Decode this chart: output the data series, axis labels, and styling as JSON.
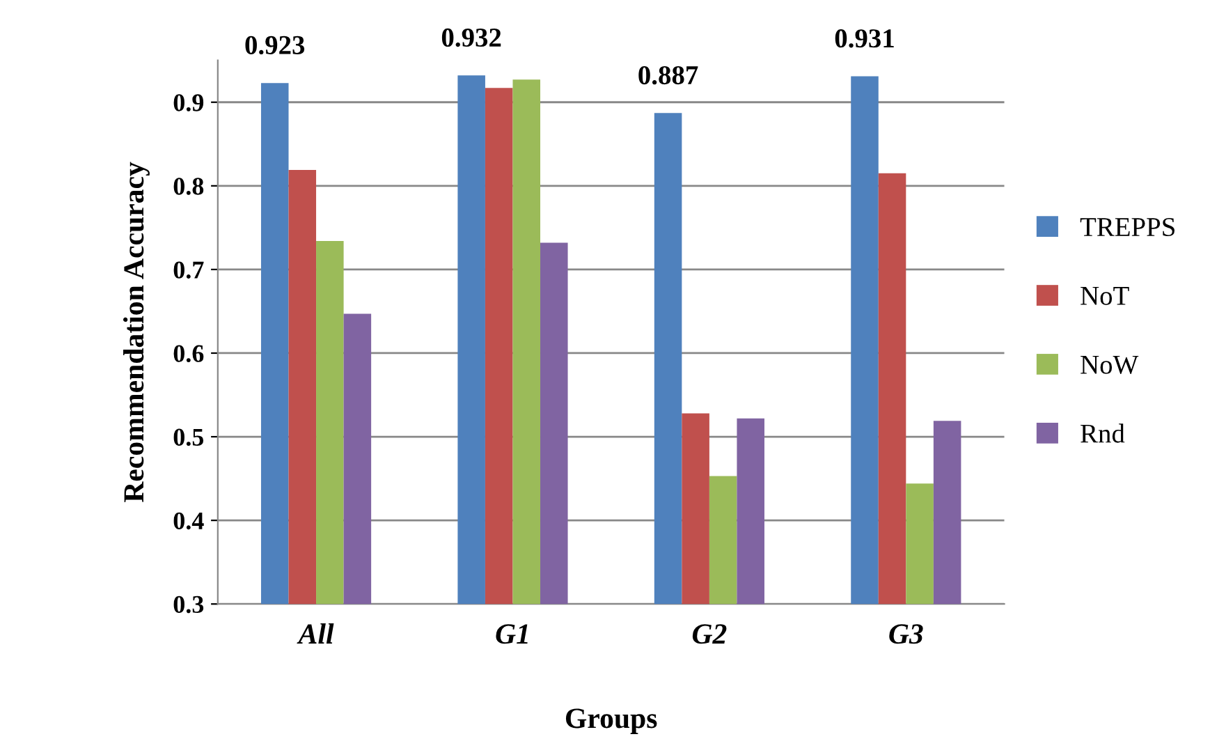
{
  "chart_data": {
    "type": "bar",
    "xlabel": "Groups",
    "ylabel": "Recommendation Accuracy",
    "categories": [
      "All",
      "G1",
      "G2",
      "G3"
    ],
    "series": [
      {
        "name": "TREPPS",
        "color": "#4f81bd",
        "values": [
          0.923,
          0.932,
          0.887,
          0.931
        ],
        "value_labels": [
          "0.923",
          "0.932",
          "0.887",
          "0.931"
        ]
      },
      {
        "name": "NoT",
        "color": "#c0504d",
        "values": [
          0.819,
          0.917,
          0.528,
          0.815
        ]
      },
      {
        "name": "NoW",
        "color": "#9bbb59",
        "values": [
          0.734,
          0.927,
          0.453,
          0.444
        ]
      },
      {
        "name": "Rnd",
        "color": "#8064a2",
        "values": [
          0.647,
          0.732,
          0.522,
          0.519
        ]
      }
    ],
    "ylim": [
      0.3,
      0.95
    ],
    "yticks": [
      0.3,
      0.4,
      0.5,
      0.6,
      0.7,
      0.8,
      0.9
    ],
    "grid": "y",
    "legend": "right"
  }
}
